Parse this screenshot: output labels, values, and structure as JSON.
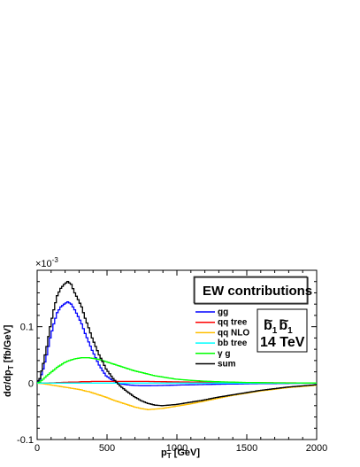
{
  "chart_data": {
    "type": "line",
    "xlabel": "p",
    "xlabel_sub": "T",
    "xlabel_unit": " [GeV]",
    "ylabel": "dσ/dp",
    "ylabel_sub": "T",
    "ylabel_unit": " [fb/GeV]",
    "y_multiplier": "×10",
    "y_multiplier_exp": "-3",
    "xlim": [
      0,
      2000
    ],
    "ylim": [
      -0.1,
      0.2
    ],
    "xticks": [
      "0",
      "500",
      "1000",
      "1500",
      "2000"
    ],
    "yticks": [
      "-0.1",
      "0",
      "0.1"
    ],
    "legend_title": "EW contributions",
    "process_label_base": "b",
    "process_label_sub": "1",
    "energy_label": "14 TeV",
    "x": [
      25,
      50,
      75,
      100,
      125,
      150,
      175,
      200,
      225,
      250,
      275,
      300,
      325,
      350,
      375,
      400,
      425,
      450,
      475,
      500,
      550,
      600,
      650,
      700,
      750,
      800,
      850,
      900,
      950,
      1000,
      1100,
      1200,
      1300,
      1400,
      1500,
      1600,
      1700,
      1800,
      1900,
      2000
    ],
    "series": [
      {
        "name": "gg",
        "color": "#0000ff",
        "values": [
          0.005,
          0.025,
          0.05,
          0.08,
          0.105,
          0.125,
          0.135,
          0.14,
          0.144,
          0.14,
          0.13,
          0.118,
          0.105,
          0.088,
          0.073,
          0.058,
          0.045,
          0.032,
          0.022,
          0.013,
          0.004,
          -0.001,
          -0.003,
          -0.004,
          -0.0045,
          -0.0045,
          -0.0043,
          -0.0042,
          -0.0038,
          -0.0035,
          -0.003,
          -0.0025,
          -0.002,
          -0.0016,
          -0.0012,
          -0.0009,
          -0.0007,
          -0.0005,
          -0.0003,
          -0.0002
        ]
      },
      {
        "name": "qq tree",
        "color": "#ff0000",
        "values": [
          0.0,
          0.0,
          0.0,
          0.0005,
          0.0005,
          0.001,
          0.001,
          0.0015,
          0.0015,
          0.002,
          0.002,
          0.002,
          0.0025,
          0.0025,
          0.0025,
          0.003,
          0.003,
          0.003,
          0.003,
          0.003,
          0.003,
          0.003,
          0.003,
          0.003,
          0.003,
          0.003,
          0.0028,
          0.0026,
          0.0024,
          0.0022,
          0.002,
          0.0018,
          0.0015,
          0.0012,
          0.001,
          0.0008,
          0.0006,
          0.0005,
          0.0004,
          0.0003
        ]
      },
      {
        "name": "qq NLO",
        "color": "#ffbf00",
        "values": [
          -0.0005,
          -0.001,
          -0.002,
          -0.003,
          -0.004,
          -0.005,
          -0.006,
          -0.007,
          -0.008,
          -0.009,
          -0.01,
          -0.011,
          -0.012,
          -0.014,
          -0.015,
          -0.017,
          -0.019,
          -0.021,
          -0.023,
          -0.025,
          -0.03,
          -0.034,
          -0.038,
          -0.042,
          -0.045,
          -0.047,
          -0.046,
          -0.045,
          -0.043,
          -0.041,
          -0.037,
          -0.032,
          -0.027,
          -0.022,
          -0.018,
          -0.014,
          -0.011,
          -0.008,
          -0.006,
          -0.004
        ]
      },
      {
        "name": "bb tree",
        "color": "#00ffff",
        "values": [
          0.0,
          0.0,
          0.0,
          0.0,
          0.0,
          0.0,
          0.0,
          0.0,
          0.0,
          0.0,
          0.0,
          0.0,
          0.0,
          0.0,
          0.0,
          0.0,
          0.0,
          0.0,
          0.0,
          0.0,
          0.0,
          0.0,
          0.0,
          0.0,
          0.0,
          0.0,
          0.0,
          0.0,
          0.0,
          0.0,
          0.0,
          0.0,
          0.0,
          0.0,
          0.0,
          0.0,
          0.0,
          0.0,
          0.0,
          0.0
        ]
      },
      {
        "name": "γ g",
        "color": "#00ff00",
        "values": [
          0.002,
          0.007,
          0.013,
          0.018,
          0.023,
          0.028,
          0.032,
          0.036,
          0.039,
          0.041,
          0.043,
          0.044,
          0.045,
          0.045,
          0.045,
          0.044,
          0.043,
          0.042,
          0.04,
          0.038,
          0.034,
          0.03,
          0.026,
          0.022,
          0.019,
          0.016,
          0.013,
          0.011,
          0.009,
          0.007,
          0.005,
          0.0035,
          0.0025,
          0.0018,
          0.0012,
          0.0009,
          0.0006,
          0.0004,
          0.0003,
          0.0002
        ]
      },
      {
        "name": "sum",
        "color": "#000000",
        "values": [
          0.008,
          0.035,
          0.065,
          0.1,
          0.13,
          0.155,
          0.168,
          0.175,
          0.18,
          0.175,
          0.16,
          0.148,
          0.135,
          0.115,
          0.098,
          0.08,
          0.065,
          0.05,
          0.038,
          0.025,
          0.008,
          -0.005,
          -0.015,
          -0.024,
          -0.031,
          -0.036,
          -0.039,
          -0.04,
          -0.039,
          -0.038,
          -0.034,
          -0.03,
          -0.025,
          -0.021,
          -0.017,
          -0.013,
          -0.01,
          -0.007,
          -0.005,
          -0.003
        ]
      }
    ]
  }
}
